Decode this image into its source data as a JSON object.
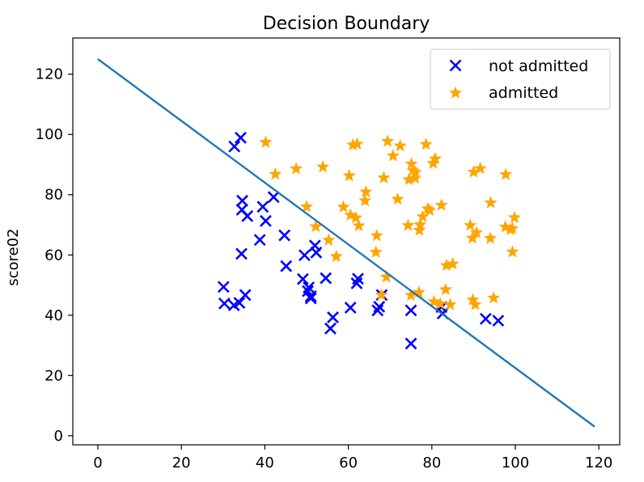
{
  "chart_data": {
    "type": "scatter",
    "title": "Decision Boundary",
    "xlabel": "",
    "ylabel": "score02",
    "xlim": [
      -6,
      125
    ],
    "ylim": [
      -3,
      132
    ],
    "xticks": [
      0,
      20,
      40,
      60,
      80,
      100,
      120
    ],
    "yticks": [
      0,
      20,
      40,
      60,
      80,
      100,
      120
    ],
    "grid": false,
    "legend_position": "top-right",
    "series": [
      {
        "name": "not admitted",
        "marker": "x",
        "color": "#0000ff",
        "points": [
          [
            34.6,
            78.0
          ],
          [
            30.3,
            43.9
          ],
          [
            35.8,
            72.9
          ],
          [
            45.1,
            56.3
          ],
          [
            32.7,
            96.0
          ],
          [
            34.2,
            98.9
          ],
          [
            39.5,
            76.0
          ],
          [
            30.1,
            49.4
          ],
          [
            40.2,
            71.3
          ],
          [
            34.4,
            60.4
          ],
          [
            33.9,
            44.1
          ],
          [
            32.6,
            43.3
          ],
          [
            35.3,
            46.7
          ],
          [
            49.1,
            52.0
          ],
          [
            50.5,
            49.2
          ],
          [
            50.3,
            48.0
          ],
          [
            51.0,
            46.3
          ],
          [
            52.3,
            60.8
          ],
          [
            52.0,
            63.1
          ],
          [
            51.0,
            45.6
          ],
          [
            55.7,
            35.6
          ],
          [
            56.3,
            39.3
          ],
          [
            54.6,
            52.3
          ],
          [
            60.5,
            42.5
          ],
          [
            62.0,
            50.6
          ],
          [
            62.3,
            52.1
          ],
          [
            67.0,
            41.6
          ],
          [
            68.0,
            46.7
          ],
          [
            67.4,
            42.8
          ],
          [
            75.0,
            30.6
          ],
          [
            75.0,
            41.6
          ],
          [
            82.3,
            42.7
          ],
          [
            82.6,
            40.6
          ],
          [
            92.9,
            38.8
          ],
          [
            95.9,
            38.2
          ],
          [
            34.5,
            75.0
          ],
          [
            38.8,
            65.0
          ],
          [
            42.1,
            79.2
          ],
          [
            49.5,
            59.9
          ],
          [
            44.7,
            66.5
          ]
        ]
      },
      {
        "name": "admitted",
        "marker": "star",
        "color": "#ffa500",
        "points": [
          [
            60.2,
            86.3
          ],
          [
            79.0,
            75.3
          ],
          [
            61.1,
            96.5
          ],
          [
            75.0,
            46.6
          ],
          [
            76.1,
            87.4
          ],
          [
            84.4,
            43.5
          ],
          [
            82.3,
            76.5
          ],
          [
            69.4,
            97.7
          ],
          [
            53.9,
            89.2
          ],
          [
            69.1,
            52.7
          ],
          [
            70.7,
            92.9
          ],
          [
            76.9,
            47.6
          ],
          [
            67.9,
            46.7
          ],
          [
            90.0,
            87.5
          ],
          [
            60.5,
            73.2
          ],
          [
            61.8,
            72.3
          ],
          [
            74.3,
            69.8
          ],
          [
            77.2,
            70.0
          ],
          [
            89.7,
            65.6
          ],
          [
            99.3,
            68.8
          ],
          [
            99.8,
            72.4
          ],
          [
            91.6,
            88.7
          ],
          [
            94.1,
            77.3
          ],
          [
            97.7,
            86.7
          ],
          [
            80.8,
            91.9
          ],
          [
            90.4,
            43.5
          ],
          [
            94.0,
            65.5
          ],
          [
            99.3,
            61.0
          ],
          [
            58.8,
            75.9
          ],
          [
            62.5,
            69.7
          ],
          [
            89.2,
            69.8
          ],
          [
            83.5,
            56.5
          ],
          [
            64.2,
            80.9
          ],
          [
            94.8,
            45.7
          ],
          [
            40.2,
            97.4
          ],
          [
            42.5,
            86.8
          ],
          [
            47.5,
            88.6
          ],
          [
            52.2,
            69.4
          ],
          [
            55.3,
            64.9
          ],
          [
            57.1,
            59.5
          ],
          [
            62.1,
            96.8
          ],
          [
            64.0,
            78.0
          ],
          [
            66.8,
            66.4
          ],
          [
            68.5,
            85.6
          ],
          [
            71.8,
            78.5
          ],
          [
            72.4,
            96.2
          ],
          [
            74.5,
            85.0
          ],
          [
            75.1,
            90.2
          ],
          [
            75.5,
            88.0
          ],
          [
            76.0,
            85.5
          ],
          [
            77.0,
            68.2
          ],
          [
            77.8,
            72.7
          ],
          [
            78.6,
            96.7
          ],
          [
            79.5,
            74.8
          ],
          [
            80.3,
            90.4
          ],
          [
            80.5,
            44.5
          ],
          [
            82.0,
            43.8
          ],
          [
            83.3,
            48.5
          ],
          [
            85.0,
            57.0
          ],
          [
            89.8,
            45.1
          ],
          [
            90.7,
            67.4
          ],
          [
            97.6,
            69.3
          ],
          [
            98.8,
            68.4
          ],
          [
            66.6,
            60.9
          ],
          [
            50.0,
            76.0
          ]
        ]
      }
    ],
    "lines": [
      {
        "name": "boundary",
        "color": "#1f77b4",
        "x": [
          0,
          119
        ],
        "y": [
          125,
          3
        ]
      }
    ]
  }
}
